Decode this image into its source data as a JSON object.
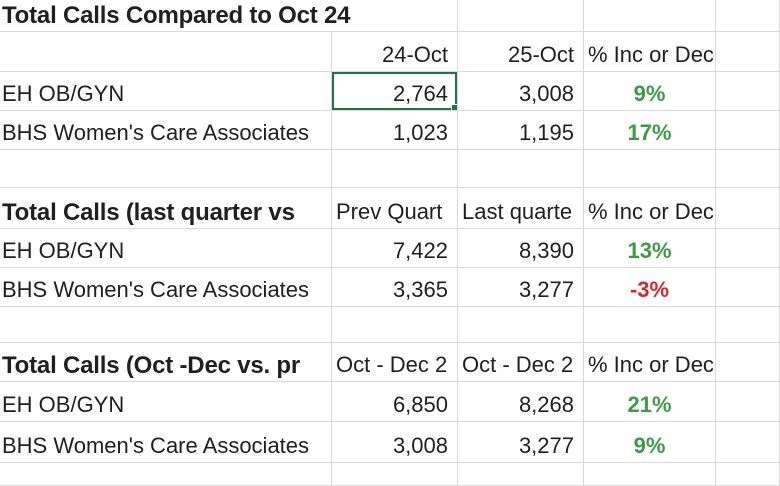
{
  "colors": {
    "grid_line": "#d9d9d9",
    "selection_green": "#217346",
    "positive_green": "#3e9a47",
    "negative_red": "#d9262c",
    "text": "#1f1f1f"
  },
  "tables": [
    {
      "title": "Total Calls Compared to Oct 24",
      "col_headers": [
        "24-Oct",
        "25-Oct",
        "% Inc or Dec"
      ],
      "rows": [
        {
          "label": "EH OB/GYN",
          "c1": "2,764",
          "c2": "3,008",
          "pct": "9%",
          "trend": "up"
        },
        {
          "label": "BHS Women's Care Associates",
          "c1": "1,023",
          "c2": "1,195",
          "pct": "17%",
          "trend": "up"
        }
      ]
    },
    {
      "title": "Total Calls (last quarter vs",
      "col_headers": [
        "Prev Quart",
        "Last quarte",
        "% Inc or Dec"
      ],
      "rows": [
        {
          "label": "EH OB/GYN",
          "c1": "7,422",
          "c2": "8,390",
          "pct": "13%",
          "trend": "up"
        },
        {
          "label": "BHS Women's Care Associates",
          "c1": "3,365",
          "c2": "3,277",
          "pct": "-3%",
          "trend": "down"
        }
      ]
    },
    {
      "title": "Total Calls (Oct -Dec vs. pr",
      "col_headers": [
        "Oct - Dec 2",
        "Oct - Dec 2",
        "% Inc or Dec"
      ],
      "rows": [
        {
          "label": "EH OB/GYN",
          "c1": "6,850",
          "c2": "8,268",
          "pct": "21%",
          "trend": "up"
        },
        {
          "label": "BHS Women's Care Associates",
          "c1": "3,008",
          "c2": "3,277",
          "pct": "9%",
          "trend": "up"
        }
      ]
    }
  ],
  "selection": {
    "value": "2,764",
    "row_label": "EH OB/GYN",
    "col_header": "24-Oct"
  }
}
